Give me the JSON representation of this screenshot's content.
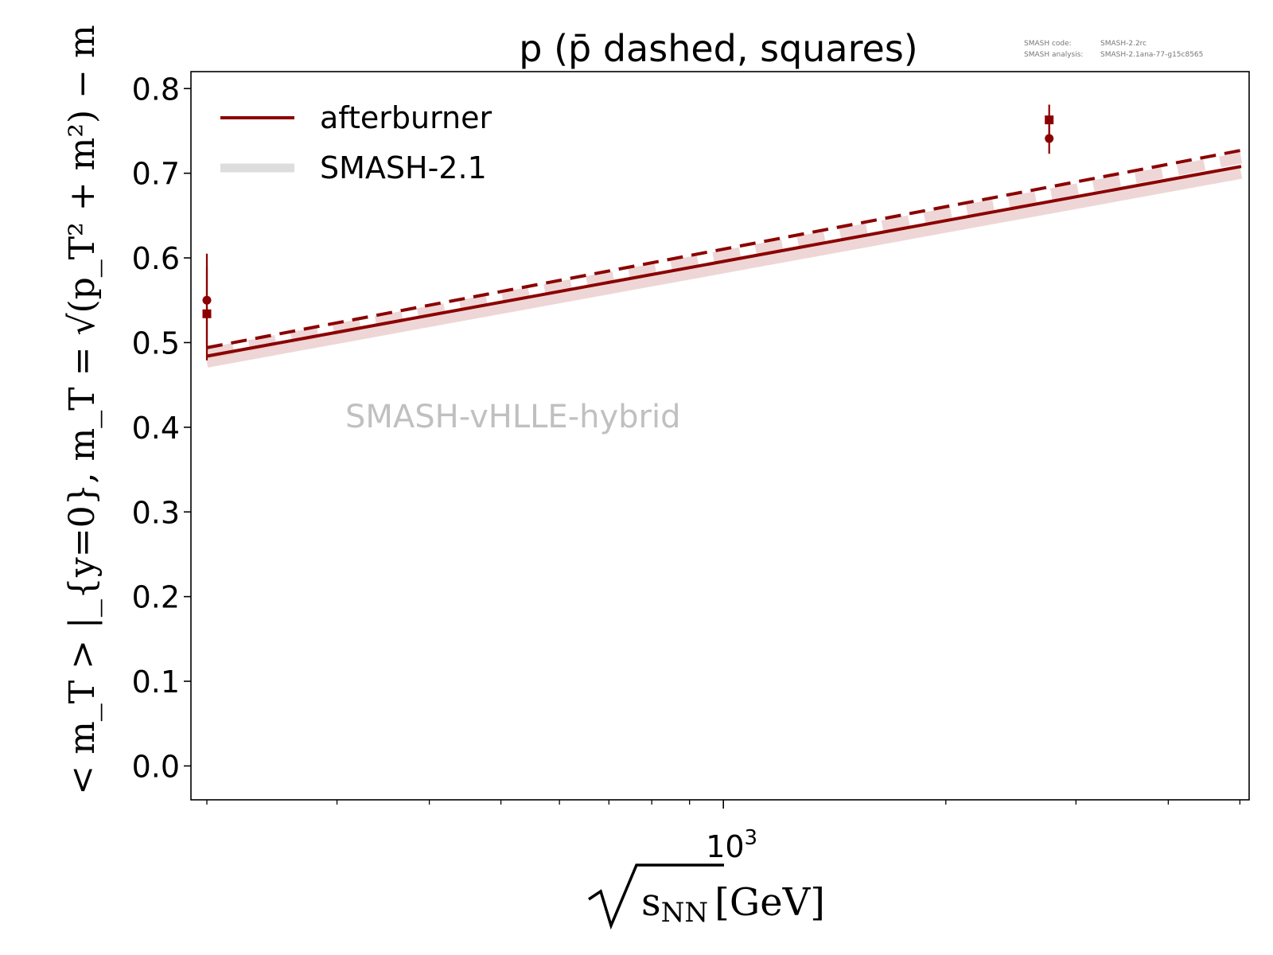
{
  "chart_data": {
    "type": "line",
    "title": "p (p̄ dashed, squares)",
    "xlabel": {
      "radicand": "s",
      "subscript": "NN",
      "unit": "[GeV]"
    },
    "ylabel": "< m_T > |_{y=0}, m_T = √(p_T² + m²) − m",
    "xscale": "log",
    "xlim": [
      200,
      5020
    ],
    "ylim": [
      -0.04,
      0.82
    ],
    "yticks": [
      "0.0",
      "0.1",
      "0.2",
      "0.3",
      "0.4",
      "0.5",
      "0.6",
      "0.7",
      "0.8"
    ],
    "ytick_values": [
      0.0,
      0.1,
      0.2,
      0.3,
      0.4,
      0.5,
      0.6,
      0.7,
      0.8
    ],
    "xticks": [
      {
        "value": 1000,
        "base": "10",
        "exp": "3"
      }
    ],
    "xminor_ticks": [
      200,
      300,
      400,
      500,
      600,
      700,
      800,
      900,
      2000,
      3000,
      4000,
      5000
    ],
    "legend": {
      "placement": "top-left",
      "entries": [
        {
          "label": "afterburner",
          "color": "#8b0000",
          "style": "solid"
        },
        {
          "label": "SMASH-2.1",
          "color": "#dddddd",
          "style": "thick"
        }
      ]
    },
    "annotations": {
      "watermark": "SMASH-vHLLE-hybrid",
      "version_code_label": "SMASH code:",
      "version_code_value": "SMASH-2.2rc",
      "version_analysis_label": "SMASH analysis:",
      "version_analysis_value": "SMASH-2.1ana-77-g15c8565"
    },
    "series": [
      {
        "name": "afterburner",
        "style": "solid",
        "color": "#8b0000",
        "x": [
          200,
          5020
        ],
        "y": [
          0.484,
          0.708
        ]
      },
      {
        "style": "dashed",
        "color": "#8b0000",
        "x": [
          200,
          5020
        ],
        "y": [
          0.494,
          0.727
        ]
      },
      {
        "name": "SMASH-2.1",
        "style": "band",
        "color": "#e8c8c8",
        "x": [
          200,
          5020
        ],
        "y": [
          0.477,
          0.7
        ]
      },
      {
        "style": "band-dashed",
        "color": "#e8c8c8",
        "x": [
          200,
          5020
        ],
        "y": [
          0.487,
          0.718
        ]
      }
    ],
    "data_points": [
      {
        "marker": "circle",
        "x": 200,
        "y": 0.55,
        "yerr": 0.055
      },
      {
        "marker": "square",
        "x": 200,
        "y": 0.534,
        "yerr": 0.055
      },
      {
        "marker": "circle",
        "x": 2760,
        "y": 0.741,
        "yerr": 0.018
      },
      {
        "marker": "square",
        "x": 2760,
        "y": 0.763,
        "yerr": 0.018
      }
    ],
    "colors": {
      "main": "#8b0000",
      "band": "#e8c8c8",
      "legend_band": "#dddddd",
      "watermark": "#c0c0c0"
    }
  }
}
